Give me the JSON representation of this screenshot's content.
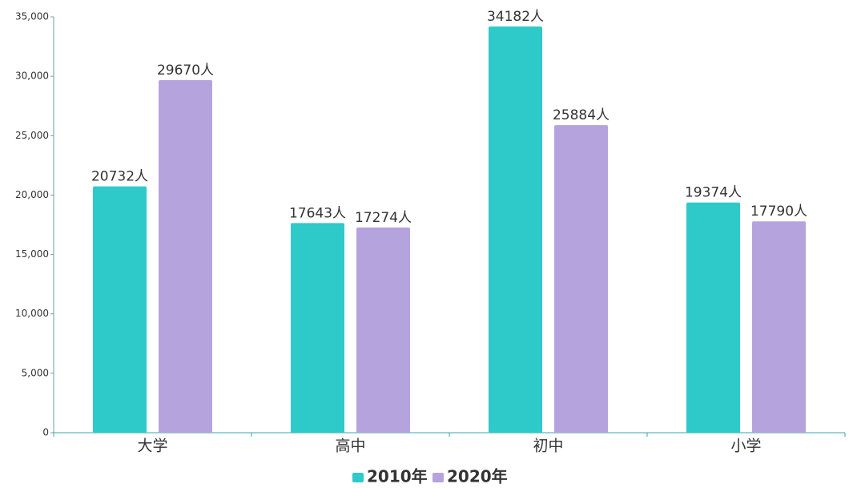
{
  "chart_data": {
    "type": "bar",
    "categories": [
      "大学",
      "高中",
      "初中",
      "小学"
    ],
    "series": [
      {
        "name": "2010年",
        "color": "#2ec9c9",
        "values": [
          20732,
          17643,
          34182,
          19374
        ],
        "value_labels": [
          "20732人",
          "17643人",
          "34182人",
          "19374人"
        ]
      },
      {
        "name": "2020年",
        "color": "#b5a3de",
        "values": [
          29670,
          17274,
          25884,
          17790
        ],
        "value_labels": [
          "29670人",
          "17274人",
          "25884人",
          "17790人"
        ]
      }
    ],
    "ylim": [
      0,
      35000
    ],
    "yticks": [
      0,
      {
        "value": 5000,
        "label": "5,000"
      },
      {
        "value": 10000,
        "label": "10,000"
      },
      {
        "value": 15000,
        "label": "15,000"
      },
      {
        "value": 20000,
        "label": "20,000"
      },
      {
        "value": 25000,
        "label": "25,000"
      },
      {
        "value": 30000,
        "label": "30,000"
      },
      {
        "value": 35000,
        "label": "35,000"
      }
    ],
    "grid": false,
    "legend": "bottom"
  }
}
